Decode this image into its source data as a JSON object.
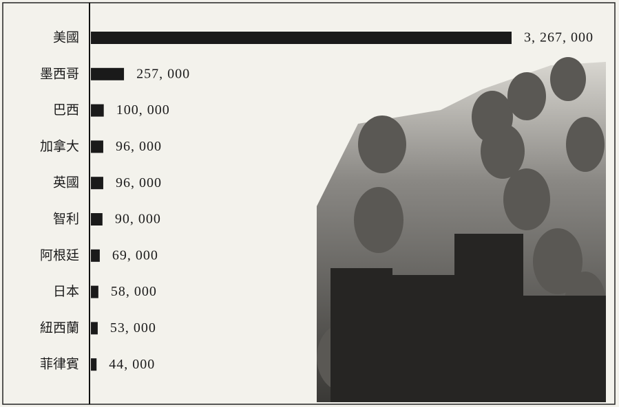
{
  "chart_data": {
    "type": "bar",
    "orientation": "horizontal",
    "categories": [
      "美國",
      "墨西哥",
      "巴西",
      "加拿大",
      "英國",
      "智利",
      "阿根廷",
      "日本",
      "紐西蘭",
      "菲律賓"
    ],
    "values": [
      3267000,
      257000,
      100000,
      96000,
      96000,
      90000,
      69000,
      58000,
      53000,
      44000
    ],
    "value_labels": [
      "3, 267, 000",
      "257, 000",
      "100, 000",
      "96, 000",
      "96, 000",
      "90, 000",
      "69, 000",
      "58, 000",
      "53, 000",
      "44, 000"
    ],
    "color": "#1a1a1a",
    "xlim": [
      0,
      3267000
    ]
  }
}
